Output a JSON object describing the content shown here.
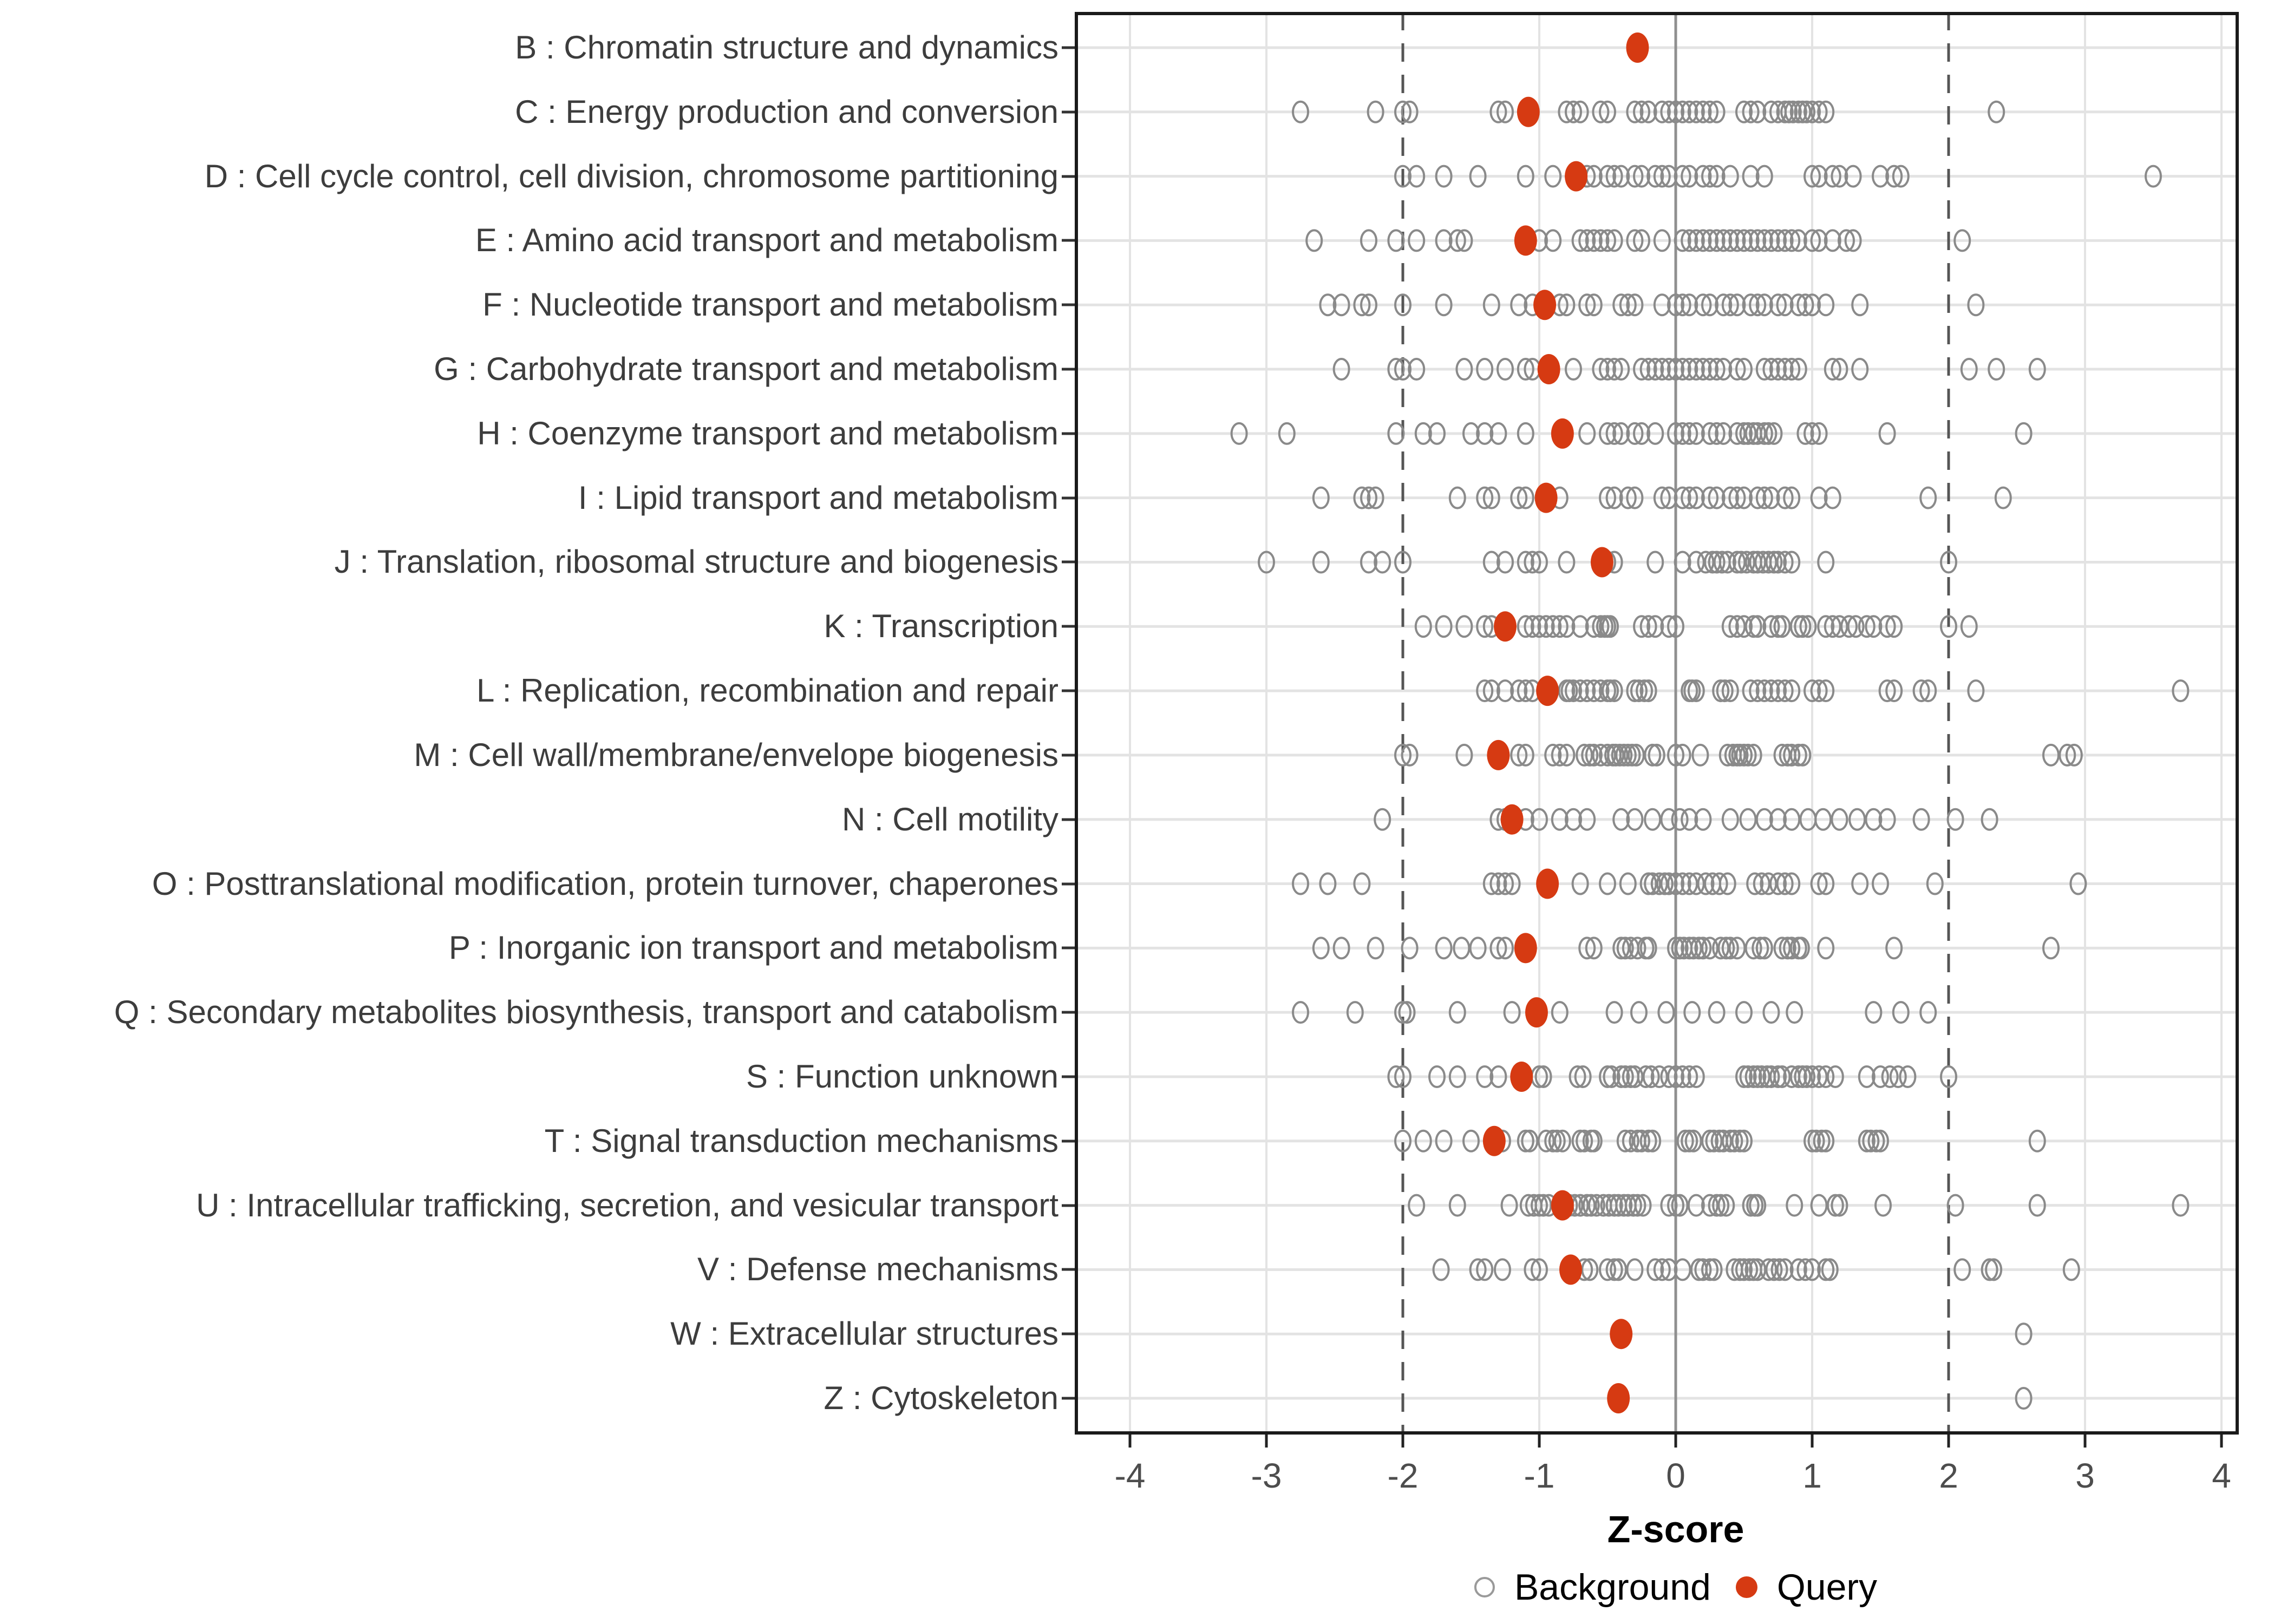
{
  "figure": {
    "xlabel": "Z-score"
  },
  "legend": {
    "background_label": "Background",
    "query_label": "Query"
  },
  "colors": {
    "query_dot": "#d63a12",
    "background_dot_stroke": "#8a8a8a",
    "grid_line": "#e3e3e3",
    "zero_line": "#8f8f8f",
    "threshold_line": "#555555",
    "panel_border": "#1a1a1a",
    "axis_tick_text": "#4d4d4d",
    "category_text": "#3d3d3d"
  },
  "chart_data": {
    "type": "scatter",
    "subtype": "horizontal-strip-dot-plot",
    "title": "",
    "xlabel": "Z-score",
    "ylabel": "",
    "x_ticks": [
      -4,
      -3,
      -2,
      -1,
      0,
      1,
      2,
      3,
      4
    ],
    "xlim": [
      -4.4,
      4.15
    ],
    "grid": true,
    "zero_reference_line": 0,
    "dashed_threshold_lines": [
      -2,
      2
    ],
    "legend_position": "bottom",
    "series_names": [
      "Background",
      "Query"
    ],
    "categories": [
      {
        "label": "B : Chromatin structure and dynamics",
        "query": -0.28,
        "background": []
      },
      {
        "label": "C : Energy production and conversion",
        "query": -1.08,
        "background": [
          -2.75,
          -2.2,
          -2.0,
          -1.95,
          -1.3,
          -1.25,
          -0.8,
          -0.75,
          -0.7,
          -0.55,
          -0.5,
          -0.3,
          -0.25,
          -0.2,
          -0.1,
          -0.05,
          0.0,
          0.05,
          0.1,
          0.15,
          0.2,
          0.25,
          0.3,
          0.5,
          0.55,
          0.6,
          0.7,
          0.75,
          0.8,
          0.83,
          0.86,
          0.9,
          0.93,
          0.96,
          1.0,
          1.05,
          1.1,
          2.35
        ]
      },
      {
        "label": "D : Cell cycle control, cell division, chromosome partitioning",
        "query": -0.73,
        "background": [
          -2.0,
          -1.9,
          -1.7,
          -1.45,
          -1.1,
          -0.9,
          -0.65,
          -0.6,
          -0.5,
          -0.45,
          -0.4,
          -0.3,
          -0.25,
          -0.15,
          -0.1,
          -0.05,
          0.05,
          0.1,
          0.2,
          0.25,
          0.3,
          0.4,
          0.55,
          0.65,
          1.0,
          1.05,
          1.15,
          1.2,
          1.3,
          1.5,
          1.6,
          1.65,
          3.5
        ]
      },
      {
        "label": "E : Amino acid transport and metabolism",
        "query": -1.1,
        "background": [
          -2.65,
          -2.25,
          -2.05,
          -1.9,
          -1.7,
          -1.6,
          -1.55,
          -1.0,
          -0.9,
          -0.7,
          -0.65,
          -0.6,
          -0.55,
          -0.5,
          -0.45,
          -0.3,
          -0.25,
          -0.1,
          0.05,
          0.1,
          0.15,
          0.2,
          0.25,
          0.3,
          0.35,
          0.4,
          0.45,
          0.5,
          0.55,
          0.6,
          0.65,
          0.7,
          0.75,
          0.8,
          0.85,
          0.9,
          1.0,
          1.05,
          1.15,
          1.25,
          1.3,
          2.1
        ]
      },
      {
        "label": "F : Nucleotide transport and metabolism",
        "query": -0.96,
        "background": [
          -2.55,
          -2.45,
          -2.3,
          -2.25,
          -2.0,
          -1.7,
          -1.35,
          -1.15,
          -1.05,
          -0.85,
          -0.8,
          -0.65,
          -0.6,
          -0.4,
          -0.35,
          -0.3,
          -0.1,
          0.0,
          0.05,
          0.1,
          0.2,
          0.25,
          0.35,
          0.4,
          0.45,
          0.55,
          0.6,
          0.65,
          0.75,
          0.8,
          0.9,
          0.95,
          1.0,
          1.1,
          1.35,
          2.2
        ]
      },
      {
        "label": "G : Carbohydrate transport and metabolism",
        "query": -0.93,
        "background": [
          -2.45,
          -2.05,
          -2.0,
          -1.9,
          -1.55,
          -1.4,
          -1.25,
          -1.1,
          -1.05,
          -0.75,
          -0.55,
          -0.5,
          -0.45,
          -0.4,
          -0.25,
          -0.2,
          -0.15,
          -0.1,
          -0.05,
          0.0,
          0.05,
          0.1,
          0.15,
          0.2,
          0.25,
          0.3,
          0.35,
          0.45,
          0.5,
          0.65,
          0.7,
          0.75,
          0.8,
          0.85,
          0.9,
          1.15,
          1.2,
          1.35,
          2.15,
          2.35,
          2.65
        ]
      },
      {
        "label": "H : Coenzyme transport and metabolism",
        "query": -0.83,
        "background": [
          -3.2,
          -2.85,
          -2.05,
          -1.85,
          -1.75,
          -1.5,
          -1.4,
          -1.3,
          -1.1,
          -0.65,
          -0.5,
          -0.45,
          -0.4,
          -0.3,
          -0.25,
          -0.15,
          0.0,
          0.05,
          0.1,
          0.15,
          0.25,
          0.3,
          0.35,
          0.45,
          0.5,
          0.53,
          0.57,
          0.6,
          0.65,
          0.68,
          0.72,
          0.95,
          1.0,
          1.05,
          1.55,
          2.55
        ]
      },
      {
        "label": "I : Lipid transport and metabolism",
        "query": -0.95,
        "background": [
          -2.6,
          -2.3,
          -2.25,
          -2.2,
          -1.6,
          -1.4,
          -1.35,
          -1.15,
          -1.1,
          -0.85,
          -0.5,
          -0.45,
          -0.35,
          -0.3,
          -0.1,
          -0.05,
          0.05,
          0.1,
          0.15,
          0.25,
          0.3,
          0.4,
          0.45,
          0.5,
          0.6,
          0.65,
          0.7,
          0.8,
          0.85,
          1.05,
          1.15,
          1.85,
          2.4
        ]
      },
      {
        "label": "J : Translation, ribosomal structure and biogenesis",
        "query": -0.54,
        "background": [
          -3.0,
          -2.6,
          -2.25,
          -2.15,
          -2.0,
          -1.35,
          -1.25,
          -1.1,
          -1.05,
          -1.0,
          -0.8,
          -0.5,
          -0.45,
          -0.15,
          0.05,
          0.15,
          0.22,
          0.27,
          0.3,
          0.34,
          0.38,
          0.45,
          0.48,
          0.52,
          0.57,
          0.6,
          0.64,
          0.68,
          0.72,
          0.75,
          0.8,
          0.85,
          1.1,
          2.0
        ]
      },
      {
        "label": "K : Transcription",
        "query": -1.25,
        "background": [
          -1.85,
          -1.7,
          -1.55,
          -1.4,
          -1.35,
          -1.1,
          -1.05,
          -1.0,
          -0.95,
          -0.9,
          -0.85,
          -0.8,
          -0.7,
          -0.6,
          -0.55,
          -0.52,
          -0.5,
          -0.48,
          -0.25,
          -0.2,
          -0.15,
          -0.05,
          0.0,
          0.4,
          0.45,
          0.5,
          0.57,
          0.6,
          0.7,
          0.75,
          0.78,
          0.9,
          0.93,
          0.97,
          1.1,
          1.15,
          1.2,
          1.27,
          1.32,
          1.4,
          1.45,
          1.55,
          1.6,
          2.0,
          2.15
        ]
      },
      {
        "label": "L : Replication, recombination and repair",
        "query": -0.94,
        "background": [
          -1.4,
          -1.35,
          -1.25,
          -1.15,
          -1.1,
          -1.05,
          -0.8,
          -0.78,
          -0.75,
          -0.7,
          -0.65,
          -0.6,
          -0.55,
          -0.5,
          -0.48,
          -0.45,
          -0.3,
          -0.27,
          -0.23,
          -0.2,
          0.1,
          0.12,
          0.15,
          0.33,
          0.36,
          0.4,
          0.55,
          0.6,
          0.65,
          0.7,
          0.75,
          0.8,
          0.85,
          1.0,
          1.05,
          1.1,
          1.55,
          1.6,
          1.8,
          1.85,
          2.2,
          3.7
        ]
      },
      {
        "label": "M : Cell wall/membrane/envelope biogenesis",
        "query": -1.3,
        "background": [
          -2.0,
          -1.95,
          -1.55,
          -1.15,
          -1.1,
          -0.9,
          -0.85,
          -0.8,
          -0.67,
          -0.63,
          -0.6,
          -0.55,
          -0.5,
          -0.46,
          -0.44,
          -0.41,
          -0.38,
          -0.35,
          -0.32,
          -0.29,
          -0.17,
          -0.14,
          0.0,
          0.05,
          0.18,
          0.38,
          0.42,
          0.45,
          0.47,
          0.5,
          0.53,
          0.57,
          0.78,
          0.82,
          0.85,
          0.9,
          0.93,
          2.75,
          2.87,
          2.92
        ]
      },
      {
        "label": "N : Cell motility",
        "query": -1.2,
        "background": [
          -2.15,
          -1.3,
          -1.25,
          -1.1,
          -1.0,
          -0.85,
          -0.75,
          -0.65,
          -0.4,
          -0.3,
          -0.17,
          -0.05,
          0.03,
          0.1,
          0.2,
          0.4,
          0.53,
          0.65,
          0.75,
          0.85,
          0.97,
          1.08,
          1.2,
          1.33,
          1.45,
          1.55,
          1.8,
          2.05,
          2.3
        ]
      },
      {
        "label": "O : Posttranslational modification, protein turnover, chaperones",
        "query": -0.94,
        "background": [
          -2.75,
          -2.55,
          -2.3,
          -1.35,
          -1.3,
          -1.25,
          -1.2,
          -0.7,
          -0.5,
          -0.35,
          -0.2,
          -0.17,
          -0.12,
          -0.08,
          -0.05,
          0.0,
          0.05,
          0.1,
          0.15,
          0.22,
          0.27,
          0.32,
          0.38,
          0.58,
          0.63,
          0.68,
          0.75,
          0.8,
          0.85,
          1.05,
          1.1,
          1.35,
          1.5,
          1.9,
          2.95
        ]
      },
      {
        "label": "P : Inorganic ion transport and metabolism",
        "query": -1.1,
        "background": [
          -2.6,
          -2.45,
          -2.2,
          -1.95,
          -1.7,
          -1.57,
          -1.45,
          -1.3,
          -1.25,
          -0.65,
          -0.6,
          -0.4,
          -0.37,
          -0.33,
          -0.28,
          -0.22,
          -0.2,
          0.0,
          0.03,
          0.06,
          0.1,
          0.13,
          0.17,
          0.2,
          0.25,
          0.33,
          0.37,
          0.4,
          0.45,
          0.57,
          0.62,
          0.65,
          0.78,
          0.82,
          0.85,
          0.9,
          0.92,
          1.1,
          1.6,
          2.75
        ]
      },
      {
        "label": "Q : Secondary metabolites biosynthesis, transport and catabolism",
        "query": -1.02,
        "background": [
          -2.75,
          -2.35,
          -2.0,
          -1.97,
          -1.6,
          -1.2,
          -0.85,
          -0.45,
          -0.27,
          -0.07,
          0.12,
          0.3,
          0.5,
          0.7,
          0.87,
          1.45,
          1.65,
          1.85
        ]
      },
      {
        "label": "S : Function unknown",
        "query": -1.13,
        "background": [
          -2.05,
          -2.0,
          -1.75,
          -1.6,
          -1.4,
          -1.3,
          -1.0,
          -0.97,
          -0.72,
          -0.68,
          -0.5,
          -0.47,
          -0.4,
          -0.37,
          -0.33,
          -0.3,
          -0.22,
          -0.18,
          -0.12,
          -0.05,
          0.0,
          0.05,
          0.1,
          0.15,
          0.5,
          0.53,
          0.57,
          0.6,
          0.63,
          0.67,
          0.7,
          0.75,
          0.78,
          0.85,
          0.9,
          0.93,
          0.96,
          1.0,
          1.05,
          1.1,
          1.17,
          1.4,
          1.5,
          1.57,
          1.63,
          1.7,
          2.0
        ]
      },
      {
        "label": "T : Signal transduction mechanisms",
        "query": -1.33,
        "background": [
          -2.0,
          -1.85,
          -1.7,
          -1.5,
          -1.27,
          -1.1,
          -1.07,
          -0.95,
          -0.9,
          -0.87,
          -0.83,
          -0.7,
          -0.67,
          -0.62,
          -0.6,
          -0.37,
          -0.33,
          -0.28,
          -0.25,
          -0.2,
          -0.17,
          0.07,
          0.1,
          0.13,
          0.25,
          0.28,
          0.32,
          0.35,
          0.4,
          0.43,
          0.47,
          0.5,
          1.0,
          1.03,
          1.07,
          1.1,
          1.4,
          1.43,
          1.47,
          1.5,
          2.65
        ]
      },
      {
        "label": "U : Intracellular trafficking, secretion, and vesicular transport",
        "query": -0.83,
        "background": [
          -1.9,
          -1.6,
          -1.22,
          -1.08,
          -1.04,
          -1.0,
          -0.97,
          -0.93,
          -0.78,
          -0.74,
          -0.7,
          -0.65,
          -0.62,
          -0.58,
          -0.53,
          -0.49,
          -0.45,
          -0.42,
          -0.38,
          -0.35,
          -0.31,
          -0.28,
          -0.24,
          -0.05,
          0.0,
          0.03,
          0.15,
          0.25,
          0.3,
          0.33,
          0.37,
          0.55,
          0.58,
          0.6,
          0.87,
          1.05,
          1.17,
          1.2,
          1.52,
          2.05,
          2.65,
          3.7
        ]
      },
      {
        "label": "V : Defense mechanisms",
        "query": -0.77,
        "background": [
          -1.72,
          -1.45,
          -1.4,
          -1.27,
          -1.05,
          -1.0,
          -0.67,
          -0.63,
          -0.5,
          -0.45,
          -0.42,
          -0.3,
          -0.15,
          -0.1,
          -0.05,
          0.05,
          0.17,
          0.2,
          0.25,
          0.28,
          0.43,
          0.47,
          0.5,
          0.54,
          0.57,
          0.6,
          0.68,
          0.72,
          0.76,
          0.8,
          0.9,
          0.95,
          1.0,
          1.1,
          1.13,
          2.1,
          2.3,
          2.33,
          2.9
        ]
      },
      {
        "label": "W : Extracellular structures",
        "query": -0.4,
        "background": [
          2.55
        ]
      },
      {
        "label": "Z : Cytoskeleton",
        "query": -0.42,
        "background": [
          2.55
        ]
      }
    ]
  }
}
